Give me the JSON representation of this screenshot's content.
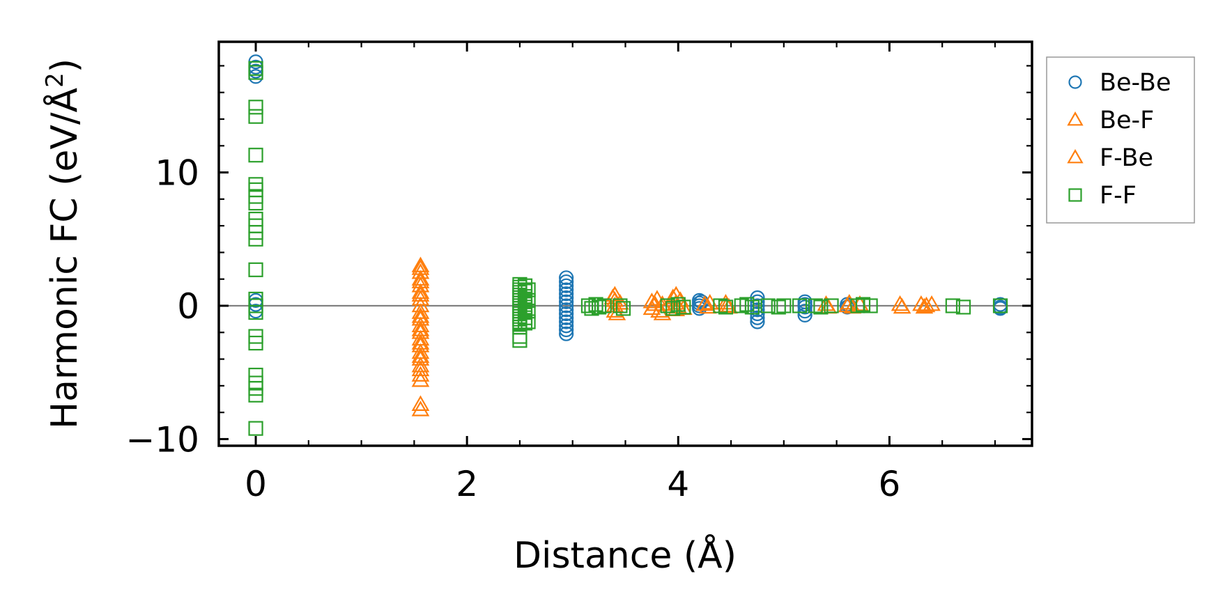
{
  "chart_data": {
    "type": "scatter",
    "xlabel": "Distance (Å)",
    "ylabel": "Harmonic FC (eV/Å",
    "ylabel_superscript": "2",
    "ylabel_suffix": ")",
    "xlim": [
      -0.35,
      7.35
    ],
    "ylim": [
      -10.5,
      19.8
    ],
    "xticks": [
      0,
      2,
      4,
      6
    ],
    "xtick_labels": [
      "0",
      "2",
      "4",
      "6"
    ],
    "yticks": [
      -10,
      0,
      10
    ],
    "ytick_labels": [
      "−10",
      "0",
      "10"
    ],
    "x_minor_step": 0.5,
    "y_minor_step": 2,
    "zero_line": true,
    "grid": false,
    "legend_position": "outside-right-top",
    "series": [
      {
        "name": "Be-Be",
        "marker": "circle",
        "color": "#1f77b4",
        "points": [
          [
            0,
            18.3
          ],
          [
            0,
            17.9
          ],
          [
            0,
            17.6
          ],
          [
            0,
            17.2
          ],
          [
            0,
            0.4
          ],
          [
            0,
            0.1
          ],
          [
            0,
            -0.4
          ],
          [
            2.94,
            2.1
          ],
          [
            2.94,
            1.8
          ],
          [
            2.94,
            1.5
          ],
          [
            2.94,
            1.2
          ],
          [
            2.94,
            0.9
          ],
          [
            2.94,
            0.6
          ],
          [
            2.94,
            0.3
          ],
          [
            2.94,
            0.0
          ],
          [
            2.94,
            -0.3
          ],
          [
            2.94,
            -0.6
          ],
          [
            2.94,
            -0.9
          ],
          [
            2.94,
            -1.2
          ],
          [
            2.94,
            -1.5
          ],
          [
            2.94,
            -1.8
          ],
          [
            2.94,
            -2.1
          ],
          [
            4.2,
            0.4
          ],
          [
            4.2,
            0.2
          ],
          [
            4.2,
            0.0
          ],
          [
            4.2,
            -0.2
          ],
          [
            4.22,
            0.3
          ],
          [
            4.75,
            0.6
          ],
          [
            4.75,
            0.3
          ],
          [
            4.75,
            0.0
          ],
          [
            4.75,
            -0.3
          ],
          [
            4.75,
            -0.6
          ],
          [
            4.75,
            -0.9
          ],
          [
            4.75,
            -1.2
          ],
          [
            5.2,
            0.3
          ],
          [
            5.2,
            0.1
          ],
          [
            5.2,
            -0.1
          ],
          [
            5.2,
            -0.4
          ],
          [
            5.2,
            -0.7
          ],
          [
            5.6,
            0.1
          ],
          [
            5.6,
            -0.1
          ],
          [
            5.62,
            0.0
          ],
          [
            7.05,
            0.1
          ],
          [
            7.05,
            -0.1
          ],
          [
            7.05,
            -0.2
          ]
        ]
      },
      {
        "name": "Be-F",
        "marker": "triangle",
        "color": "#ff7f0e",
        "points": [
          [
            1.56,
            3.0
          ],
          [
            1.56,
            2.5
          ],
          [
            1.56,
            2.0
          ],
          [
            1.56,
            1.5
          ],
          [
            1.56,
            1.0
          ],
          [
            1.56,
            0.5
          ],
          [
            1.56,
            0.0
          ],
          [
            1.56,
            -0.5
          ],
          [
            1.56,
            -1.0
          ],
          [
            1.56,
            -1.5
          ],
          [
            1.56,
            -2.0
          ],
          [
            1.56,
            -2.5
          ],
          [
            1.56,
            -3.0
          ],
          [
            1.56,
            -3.5
          ],
          [
            1.56,
            -4.0
          ],
          [
            1.56,
            -4.5
          ],
          [
            1.56,
            -5.2
          ],
          [
            1.56,
            -5.6
          ],
          [
            1.56,
            -7.4
          ],
          [
            1.56,
            -7.8
          ],
          [
            3.4,
            0.8
          ],
          [
            3.4,
            0.4
          ],
          [
            3.4,
            0.0
          ],
          [
            3.4,
            -0.4
          ],
          [
            3.42,
            -0.6
          ],
          [
            3.45,
            0.2
          ],
          [
            3.75,
            0.3
          ],
          [
            3.75,
            -0.2
          ],
          [
            3.8,
            0.5
          ],
          [
            3.82,
            -0.4
          ],
          [
            3.85,
            0.1
          ],
          [
            3.85,
            -0.6
          ],
          [
            3.98,
            0.8
          ],
          [
            3.98,
            0.2
          ],
          [
            3.98,
            -0.3
          ],
          [
            4.02,
            0.4
          ],
          [
            4.05,
            -0.2
          ],
          [
            4.25,
            0.1
          ],
          [
            4.28,
            -0.1
          ],
          [
            4.45,
            0.2
          ],
          [
            4.48,
            -0.1
          ],
          [
            5.4,
            0.1
          ],
          [
            5.42,
            -0.1
          ],
          [
            5.62,
            0.2
          ],
          [
            5.65,
            -0.1
          ],
          [
            5.72,
            0.1
          ],
          [
            6.1,
            0.1
          ],
          [
            6.12,
            -0.1
          ],
          [
            6.3,
            0.1
          ],
          [
            6.33,
            -0.1
          ],
          [
            6.4,
            0.1
          ]
        ]
      },
      {
        "name": "F-Be",
        "marker": "triangle",
        "color": "#ff7f0e",
        "points": [
          [
            1.56,
            2.8
          ],
          [
            1.56,
            1.8
          ],
          [
            1.56,
            0.8
          ],
          [
            1.56,
            -0.8
          ],
          [
            1.56,
            -1.8
          ],
          [
            1.56,
            -2.8
          ],
          [
            1.56,
            -3.8
          ],
          [
            1.56,
            -4.8
          ],
          [
            3.38,
            0.6
          ],
          [
            3.78,
            0.1
          ],
          [
            3.95,
            0.6
          ],
          [
            4.0,
            -0.1
          ],
          [
            4.3,
            0.2
          ],
          [
            4.46,
            0.0
          ],
          [
            5.6,
            0.0
          ],
          [
            6.35,
            0.0
          ]
        ]
      },
      {
        "name": "F-F",
        "marker": "square",
        "color": "#2ca02c",
        "points": [
          [
            0,
            17.8
          ],
          [
            0,
            17.5
          ],
          [
            0,
            14.9
          ],
          [
            0,
            14.2
          ],
          [
            0,
            11.3
          ],
          [
            0,
            9.1
          ],
          [
            0,
            8.7
          ],
          [
            0,
            8.2
          ],
          [
            0,
            7.7
          ],
          [
            0,
            6.5
          ],
          [
            0,
            6.0
          ],
          [
            0,
            5.5
          ],
          [
            0,
            5.0
          ],
          [
            0,
            2.7
          ],
          [
            0,
            0.5
          ],
          [
            0,
            0.0
          ],
          [
            0,
            -0.5
          ],
          [
            0,
            -2.3
          ],
          [
            0,
            -2.8
          ],
          [
            0,
            -5.2
          ],
          [
            0,
            -5.8
          ],
          [
            0,
            -6.2
          ],
          [
            0,
            -6.7
          ],
          [
            0,
            -9.2
          ],
          [
            2.5,
            1.6
          ],
          [
            2.5,
            1.4
          ],
          [
            2.5,
            1.2
          ],
          [
            2.5,
            1.0
          ],
          [
            2.5,
            0.8
          ],
          [
            2.5,
            0.6
          ],
          [
            2.5,
            0.4
          ],
          [
            2.5,
            0.2
          ],
          [
            2.5,
            0.0
          ],
          [
            2.5,
            -0.2
          ],
          [
            2.5,
            -0.4
          ],
          [
            2.5,
            -0.6
          ],
          [
            2.5,
            -0.8
          ],
          [
            2.5,
            -1.0
          ],
          [
            2.5,
            -1.2
          ],
          [
            2.5,
            -1.4
          ],
          [
            2.5,
            -1.6
          ],
          [
            2.55,
            1.5
          ],
          [
            2.55,
            1.1
          ],
          [
            2.55,
            0.7
          ],
          [
            2.55,
            0.3
          ],
          [
            2.55,
            -0.1
          ],
          [
            2.55,
            -0.5
          ],
          [
            2.55,
            -0.9
          ],
          [
            2.55,
            -1.3
          ],
          [
            2.58,
            1.2
          ],
          [
            2.58,
            0.4
          ],
          [
            2.58,
            -0.4
          ],
          [
            2.58,
            -1.2
          ],
          [
            2.5,
            -2.3
          ],
          [
            2.5,
            -2.6
          ],
          [
            3.15,
            0.0
          ],
          [
            3.18,
            -0.2
          ],
          [
            3.22,
            0.1
          ],
          [
            3.25,
            -0.1
          ],
          [
            3.3,
            0.0
          ],
          [
            3.45,
            0.0
          ],
          [
            3.48,
            -0.2
          ],
          [
            3.9,
            0.0
          ],
          [
            3.95,
            -0.2
          ],
          [
            4.0,
            0.1
          ],
          [
            4.05,
            -0.1
          ],
          [
            4.4,
            0.0
          ],
          [
            4.45,
            -0.1
          ],
          [
            4.6,
            0.0
          ],
          [
            4.65,
            0.1
          ],
          [
            4.7,
            -0.1
          ],
          [
            4.85,
            0.0
          ],
          [
            4.95,
            -0.1
          ],
          [
            5.0,
            0.0
          ],
          [
            5.15,
            0.0
          ],
          [
            5.3,
            0.0
          ],
          [
            5.35,
            -0.1
          ],
          [
            5.45,
            0.0
          ],
          [
            5.7,
            0.0
          ],
          [
            5.75,
            0.1
          ],
          [
            5.82,
            0.0
          ],
          [
            6.6,
            0.0
          ],
          [
            6.7,
            -0.1
          ],
          [
            7.05,
            0.0
          ]
        ]
      }
    ]
  }
}
